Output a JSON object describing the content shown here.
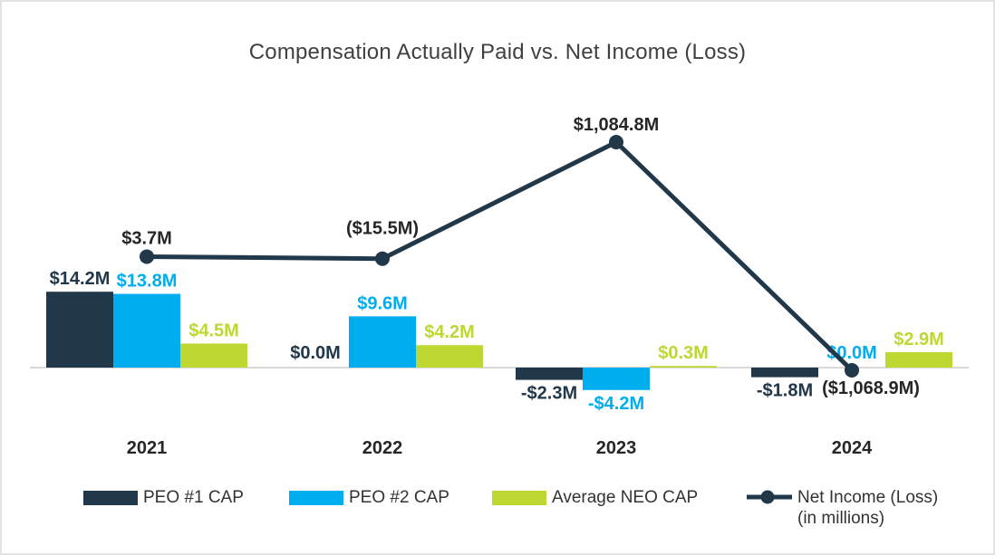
{
  "chart_data": {
    "type": "bar+line",
    "title": "Compensation Actually Paid vs. Net Income (Loss)",
    "units": "USD millions",
    "categories": [
      "2021",
      "2022",
      "2023",
      "2024"
    ],
    "series": [
      {
        "key": "peo1-cap",
        "name": "PEO #1 CAP",
        "color": "#21374A",
        "values": [
          14.2,
          0.0,
          -2.3,
          -1.8
        ],
        "labels": [
          "$14.2M",
          "$0.0M",
          "-$2.3M",
          "-$1.8M"
        ]
      },
      {
        "key": "peo2-cap",
        "name": "PEO #2 CAP",
        "color": "#00AEEF",
        "values": [
          13.8,
          9.6,
          -4.2,
          0.0
        ],
        "labels": [
          "$13.8M",
          "$9.6M",
          "-$4.2M",
          "$0.0M"
        ]
      },
      {
        "key": "avg-neo-cap",
        "name": "Average NEO CAP",
        "color": "#BFD732",
        "values": [
          4.5,
          4.2,
          0.3,
          2.9
        ],
        "labels": [
          "$4.5M",
          "$4.2M",
          "$0.3M",
          "$2.9M"
        ]
      }
    ],
    "line_series": {
      "key": "net-income-loss",
      "name": "Net Income (Loss) (in millions)",
      "legend_line1": "Net Income (Loss)",
      "legend_line2": "(in millions)",
      "color": "#21374A",
      "label_color": "#262626",
      "values": [
        3.7,
        -15.5,
        1084.8,
        -1068.9
      ],
      "labels": [
        "$3.7M",
        "($15.5M)",
        "$1,084.8M",
        "($1,068.9M)"
      ]
    },
    "axes": {
      "bar_axis": {
        "ylim": [
          -6,
          16
        ],
        "ticks_visible": false
      },
      "line_axis": {
        "ylim": [
          -1100,
          1100
        ],
        "ticks_visible": false
      },
      "gridlines": false,
      "baseline_color": "#D9D9D9"
    },
    "legend_position": "bottom",
    "text_colors": {
      "title": "#404040",
      "category_labels": "#262626",
      "legend_labels": "#333333"
    }
  }
}
